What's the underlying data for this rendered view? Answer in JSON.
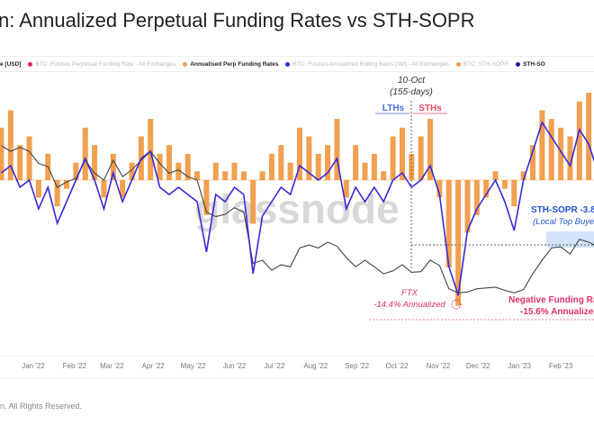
{
  "title": "n: Annualized Perpetual Funding Rates vs STH-SOPR",
  "legend": [
    {
      "label": "e [USD]",
      "color": "#555555",
      "active": true,
      "dot": false
    },
    {
      "label": "BTC: Futures Perpetual Funding Rate - All Exchanges",
      "color": "#e91e63",
      "active": false,
      "dot": true
    },
    {
      "label": "Annualised Perp Funding Rates",
      "color": "#f0a050",
      "active": true,
      "dot": true
    },
    {
      "label": "BTC: Futures Annualized Rolling Basis (3M) - All Exchanges",
      "color": "#2b2bd6",
      "active": false,
      "dot": true
    },
    {
      "label": "BTC: STH-SOPR",
      "color": "#f0a050",
      "active": false,
      "dot": true
    },
    {
      "label": "STH-SO",
      "color": "#1a1a9e",
      "active": true,
      "dot": true
    }
  ],
  "footer": "n. All Rights Reserved.",
  "watermark": "glassnode",
  "colors": {
    "funding": "#f0a050",
    "sopr": "#3a2ad6",
    "price": "#444444",
    "lth": "#4a6fe0",
    "sth": "#e84a6a",
    "ftx": "#e0306a",
    "annotation_blue": "#2255cc"
  },
  "annotations": {
    "date_label": "10-Oct",
    "days_label": "(155-days)",
    "lth": "LTHs",
    "sth": "STHs",
    "ftx_title": "FTX",
    "ftx_value": "-14.4% Annualized",
    "sopr_title": "STH-SOPR -3.8",
    "sopr_sub": "(Local Top Buye",
    "neg_title": "Negative Funding Ra",
    "neg_value": "-15.6% Annualized"
  },
  "chart_data": {
    "type": "bar+line",
    "title": "Annualized Perpetual Funding Rates vs STH-SOPR",
    "xlabel": "",
    "ylabel": "",
    "x_ticks": [
      "Jan '22",
      "Feb '22",
      "Mar '22",
      "Apr '22",
      "May '22",
      "Jun '22",
      "Jul '22",
      "Aug '22",
      "Sep '22",
      "Oct '22",
      "Nov '22",
      "Dec '22",
      "Jan '23",
      "Feb '23",
      "M"
    ],
    "x_tick_dates": [
      "2022-01-01",
      "2022-02-01",
      "2022-03-01",
      "2022-04-01",
      "2022-05-01",
      "2022-06-01",
      "2022-07-01",
      "2022-08-01",
      "2022-09-01",
      "2022-10-01",
      "2022-11-01",
      "2022-12-01",
      "2023-01-01",
      "2023-02-01",
      "2023-03-01"
    ],
    "grid": false,
    "legend": "top",
    "dates": [
      "2021-12-08",
      "2021-12-15",
      "2021-12-22",
      "2021-12-29",
      "2022-01-05",
      "2022-01-12",
      "2022-01-19",
      "2022-01-26",
      "2022-02-02",
      "2022-02-09",
      "2022-02-16",
      "2022-02-23",
      "2022-03-02",
      "2022-03-09",
      "2022-03-16",
      "2022-03-23",
      "2022-03-30",
      "2022-04-06",
      "2022-04-13",
      "2022-04-20",
      "2022-04-27",
      "2022-05-04",
      "2022-05-11",
      "2022-05-18",
      "2022-05-25",
      "2022-06-01",
      "2022-06-08",
      "2022-06-15",
      "2022-06-22",
      "2022-06-29",
      "2022-07-06",
      "2022-07-13",
      "2022-07-20",
      "2022-07-27",
      "2022-08-03",
      "2022-08-10",
      "2022-08-17",
      "2022-08-24",
      "2022-08-31",
      "2022-09-07",
      "2022-09-14",
      "2022-09-21",
      "2022-09-28",
      "2022-10-05",
      "2022-10-12",
      "2022-10-19",
      "2022-10-26",
      "2022-11-02",
      "2022-11-09",
      "2022-11-16",
      "2022-11-23",
      "2022-11-30",
      "2022-12-07",
      "2022-12-14",
      "2022-12-21",
      "2022-12-28",
      "2023-01-04",
      "2023-01-11",
      "2023-01-18",
      "2023-01-25",
      "2023-02-01",
      "2023-02-08",
      "2023-02-15",
      "2023-02-22",
      "2023-03-01"
    ],
    "series": [
      {
        "name": "Annualised Perp Funding Rates",
        "kind": "bar",
        "unit": "%",
        "values": [
          6,
          8,
          4,
          5,
          -2,
          3,
          -3,
          -1,
          2,
          6,
          4,
          -2,
          3,
          -2,
          2,
          5,
          7,
          3,
          4,
          2,
          3,
          1,
          -4,
          2,
          1,
          2,
          1,
          -5,
          1,
          3,
          4,
          2,
          6,
          5,
          3,
          4,
          7,
          -2,
          4,
          2,
          3,
          1,
          5,
          6,
          3,
          5,
          7,
          -2,
          -10,
          -14.4,
          -6,
          -4,
          -2,
          1,
          -1,
          -3,
          1,
          4,
          8,
          7,
          6,
          5,
          9,
          10,
          4
        ]
      },
      {
        "name": "STH-SOPR",
        "kind": "line",
        "values": [
          1.01,
          1.02,
          0.99,
          1.0,
          0.96,
          0.99,
          0.94,
          0.97,
          1.0,
          1.03,
          1.0,
          0.96,
          1.01,
          0.97,
          1.0,
          1.03,
          1.04,
          0.99,
          0.98,
          0.99,
          0.98,
          0.97,
          0.9,
          0.98,
          0.97,
          0.99,
          0.98,
          0.87,
          0.95,
          0.97,
          0.99,
          0.98,
          1.02,
          1.01,
          1.0,
          1.01,
          1.03,
          0.96,
          0.99,
          0.97,
          0.99,
          0.97,
          1.0,
          1.01,
          0.99,
          1.0,
          1.02,
          0.98,
          0.88,
          0.84,
          0.93,
          0.96,
          0.98,
          1.0,
          0.97,
          0.93,
          1.0,
          1.04,
          1.08,
          1.06,
          1.04,
          1.02,
          1.07,
          1.05,
          1.01
        ]
      },
      {
        "name": "e [USD]",
        "kind": "line",
        "unit": "USD",
        "values": [
          49000,
          47000,
          48500,
          47000,
          43000,
          42000,
          36000,
          37500,
          38500,
          44000,
          40000,
          38000,
          44000,
          39000,
          41000,
          44000,
          47000,
          43000,
          40000,
          41000,
          39000,
          38000,
          30000,
          29000,
          29500,
          31000,
          30000,
          20500,
          21000,
          19500,
          20300,
          20000,
          23000,
          23500,
          23000,
          24000,
          23300,
          21400,
          20000,
          21000,
          20000,
          19000,
          19400,
          20300,
          19200,
          19300,
          21000,
          20200,
          17000,
          16500,
          16600,
          17000,
          17100,
          17200,
          16800,
          16500,
          16900,
          19000,
          21000,
          23000,
          23200,
          22000,
          24500,
          24000,
          23200
        ]
      }
    ]
  }
}
